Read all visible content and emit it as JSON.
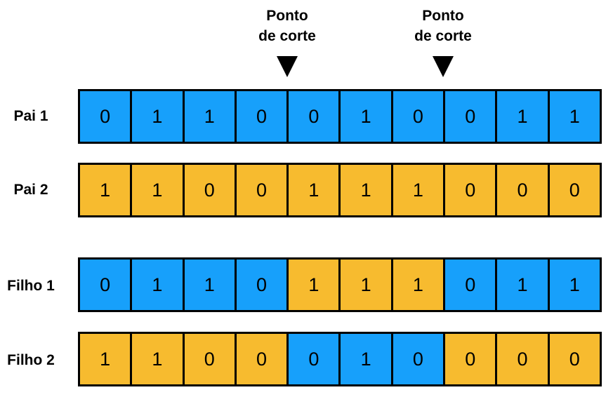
{
  "cut_points": [
    {
      "line1": "Ponto",
      "line2": "de corte"
    },
    {
      "line1": "Ponto",
      "line2": "de corte"
    }
  ],
  "colors": {
    "blue": "#17a0fb",
    "orange": "#f7bb2f"
  },
  "rows": [
    {
      "label": "Pai 1",
      "genes": [
        {
          "v": "0",
          "c": "blue"
        },
        {
          "v": "1",
          "c": "blue"
        },
        {
          "v": "1",
          "c": "blue"
        },
        {
          "v": "0",
          "c": "blue"
        },
        {
          "v": "0",
          "c": "blue"
        },
        {
          "v": "1",
          "c": "blue"
        },
        {
          "v": "0",
          "c": "blue"
        },
        {
          "v": "0",
          "c": "blue"
        },
        {
          "v": "1",
          "c": "blue"
        },
        {
          "v": "1",
          "c": "blue"
        }
      ]
    },
    {
      "label": "Pai 2",
      "genes": [
        {
          "v": "1",
          "c": "orange"
        },
        {
          "v": "1",
          "c": "orange"
        },
        {
          "v": "0",
          "c": "orange"
        },
        {
          "v": "0",
          "c": "orange"
        },
        {
          "v": "1",
          "c": "orange"
        },
        {
          "v": "1",
          "c": "orange"
        },
        {
          "v": "1",
          "c": "orange"
        },
        {
          "v": "0",
          "c": "orange"
        },
        {
          "v": "0",
          "c": "orange"
        },
        {
          "v": "0",
          "c": "orange"
        }
      ]
    },
    {
      "label": "Filho 1",
      "genes": [
        {
          "v": "0",
          "c": "blue"
        },
        {
          "v": "1",
          "c": "blue"
        },
        {
          "v": "1",
          "c": "blue"
        },
        {
          "v": "0",
          "c": "blue"
        },
        {
          "v": "1",
          "c": "orange"
        },
        {
          "v": "1",
          "c": "orange"
        },
        {
          "v": "1",
          "c": "orange"
        },
        {
          "v": "0",
          "c": "blue"
        },
        {
          "v": "1",
          "c": "blue"
        },
        {
          "v": "1",
          "c": "blue"
        }
      ]
    },
    {
      "label": "Filho 2",
      "genes": [
        {
          "v": "1",
          "c": "orange"
        },
        {
          "v": "1",
          "c": "orange"
        },
        {
          "v": "0",
          "c": "orange"
        },
        {
          "v": "0",
          "c": "orange"
        },
        {
          "v": "0",
          "c": "blue"
        },
        {
          "v": "1",
          "c": "blue"
        },
        {
          "v": "0",
          "c": "blue"
        },
        {
          "v": "0",
          "c": "orange"
        },
        {
          "v": "0",
          "c": "orange"
        },
        {
          "v": "0",
          "c": "orange"
        }
      ]
    }
  ]
}
